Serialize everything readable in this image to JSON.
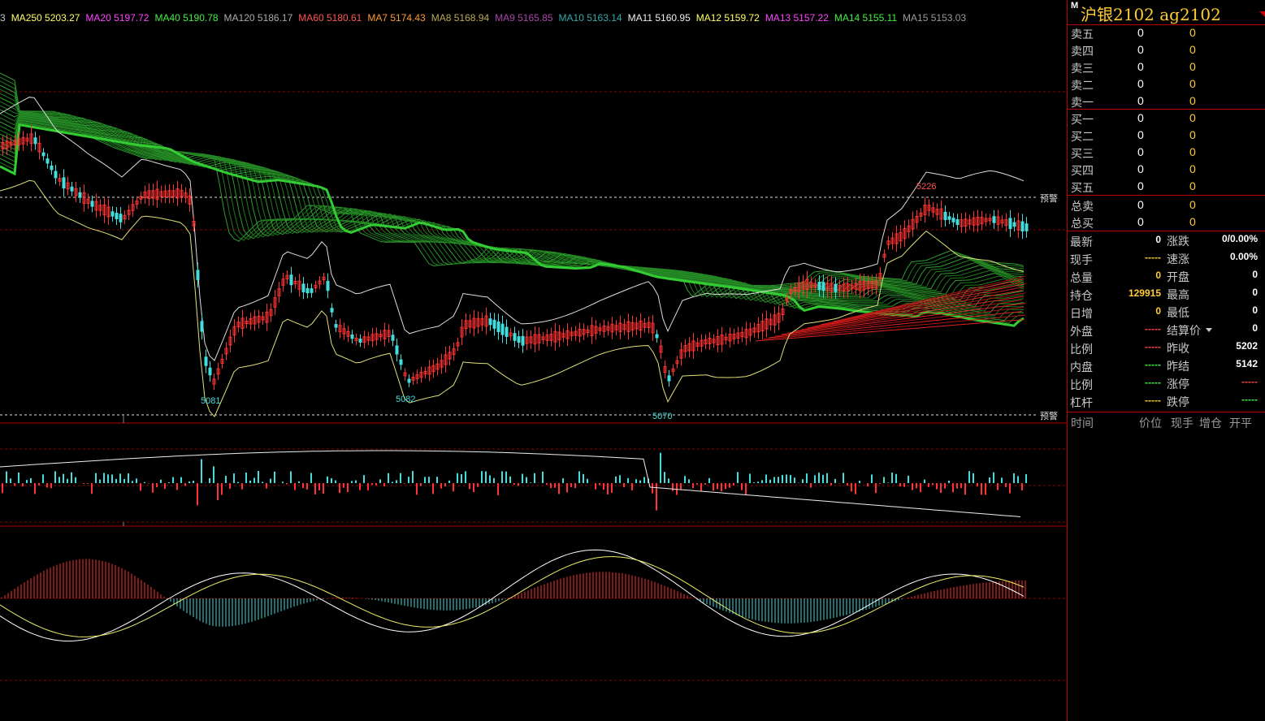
{
  "ma_legend": [
    {
      "label": "3",
      "color": "#c8c8c8"
    },
    {
      "label": "MA250 5203.27",
      "color": "#ffff66"
    },
    {
      "label": "MA20 5197.72",
      "color": "#ff44ff"
    },
    {
      "label": "MA40 5190.78",
      "color": "#44ee44"
    },
    {
      "label": "MA120 5186.17",
      "color": "#aaaaaa"
    },
    {
      "label": "MA60 5180.61",
      "color": "#ff5555"
    },
    {
      "label": "MA7 5174.43",
      "color": "#ff9933"
    },
    {
      "label": "MA8 5168.94",
      "color": "#bbaa55"
    },
    {
      "label": "MA9 5165.85",
      "color": "#aa44aa"
    },
    {
      "label": "MA10 5163.14",
      "color": "#33aaaa"
    },
    {
      "label": "MA11 5160.95",
      "color": "#eeeeee"
    },
    {
      "label": "MA12 5159.72",
      "color": "#ffff66"
    },
    {
      "label": "MA13 5157.22",
      "color": "#ff44ff"
    },
    {
      "label": "MA14 5155.11",
      "color": "#44ee44"
    },
    {
      "label": "MA15 5153.03",
      "color": "#999999"
    }
  ],
  "price_labels": {
    "low1": "5081",
    "low2": "5082",
    "low3": "5070",
    "high1": "5226"
  },
  "warn_label": "预警",
  "colors": {
    "up": "#ff3333",
    "down": "#44dddd",
    "ribbon_green": "#33cc33",
    "ribbon_red": "#cc1111",
    "accent": "#ffcc33",
    "frame": "#b00000"
  },
  "quote": {
    "marker": "M",
    "title": "沪银2102   ag2102",
    "sell": [
      {
        "label": "卖五",
        "price": "0",
        "vol": "0"
      },
      {
        "label": "卖四",
        "price": "0",
        "vol": "0"
      },
      {
        "label": "卖三",
        "price": "0",
        "vol": "0"
      },
      {
        "label": "卖二",
        "price": "0",
        "vol": "0"
      },
      {
        "label": "卖一",
        "price": "0",
        "vol": "0"
      }
    ],
    "buy": [
      {
        "label": "买一",
        "price": "0",
        "vol": "0"
      },
      {
        "label": "买二",
        "price": "0",
        "vol": "0"
      },
      {
        "label": "买三",
        "price": "0",
        "vol": "0"
      },
      {
        "label": "买四",
        "price": "0",
        "vol": "0"
      },
      {
        "label": "买五",
        "price": "0",
        "vol": "0"
      }
    ],
    "totals": [
      {
        "label": "总卖",
        "price": "0",
        "vol": "0"
      },
      {
        "label": "总买",
        "price": "0",
        "vol": "0"
      }
    ],
    "stats_left": [
      {
        "label": "最新",
        "value": "0",
        "color": "#ffffff"
      },
      {
        "label": "现手",
        "value": "-----",
        "color": "#ffcc33"
      },
      {
        "label": "总量",
        "value": "0",
        "color": "#ffcc33"
      },
      {
        "label": "持仓",
        "value": "129915",
        "color": "#ffcc33"
      },
      {
        "label": "日增",
        "value": "0",
        "color": "#ffcc33"
      },
      {
        "label": "外盘",
        "value": "-----",
        "color": "#ff4444"
      },
      {
        "label": "比例",
        "value": "-----",
        "color": "#ff4444"
      },
      {
        "label": "内盘",
        "value": "-----",
        "color": "#44ee44"
      },
      {
        "label": "比例",
        "value": "-----",
        "color": "#44ee44"
      },
      {
        "label": "杠杆",
        "value": "-----",
        "color": "#ffcc33"
      }
    ],
    "stats_right": [
      {
        "label": "涨跌",
        "value": "0/0.00%",
        "color": "#ffffff"
      },
      {
        "label": "速涨",
        "value": "0.00%",
        "color": "#ffffff"
      },
      {
        "label": "开盘",
        "value": "0",
        "color": "#ffffff"
      },
      {
        "label": "最高",
        "value": "0",
        "color": "#ffffff"
      },
      {
        "label": "最低",
        "value": "0",
        "color": "#ffffff"
      },
      {
        "label": "结算价",
        "value": "0",
        "color": "#ffffff"
      },
      {
        "label": "昨收",
        "value": "5202",
        "color": "#ffffff"
      },
      {
        "label": "昨结",
        "value": "5142",
        "color": "#ffffff"
      },
      {
        "label": "涨停",
        "value": "-----",
        "color": "#ff4444"
      },
      {
        "label": "跌停",
        "value": "-----",
        "color": "#44ee44"
      }
    ],
    "trade_header": [
      "时间",
      "价位",
      "现手",
      "增仓",
      "开平"
    ]
  }
}
